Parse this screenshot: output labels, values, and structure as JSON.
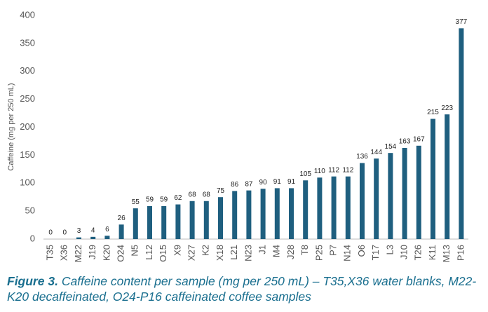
{
  "chart_data": {
    "type": "bar",
    "y_label": "Caffeine (mg per 250 mL)",
    "categories": [
      "T35",
      "X36",
      "M22",
      "J19",
      "K20",
      "O24",
      "N5",
      "L12",
      "O15",
      "X9",
      "X27",
      "K2",
      "X18",
      "L21",
      "N23",
      "J1",
      "M4",
      "J28",
      "T8",
      "P25",
      "P7",
      "N14",
      "O6",
      "T17",
      "L3",
      "J10",
      "T26",
      "K11",
      "M13",
      "P16"
    ],
    "values": [
      0,
      0,
      3,
      4,
      6,
      26,
      55,
      59,
      59,
      62,
      68,
      68,
      75,
      86,
      87,
      90,
      91,
      91,
      105,
      110,
      112,
      112,
      136,
      144,
      154,
      163,
      167,
      215,
      223,
      377
    ],
    "color": "#1f5f7f",
    "ylim": [
      0,
      400
    ],
    "yticks": [
      0,
      50,
      100,
      150,
      200,
      250,
      300,
      350,
      400
    ],
    "grid": false
  },
  "caption": {
    "label": "Figure 3.",
    "text": "Caffeine content per sample (mg per 250 mL) – T35,X36 water blanks, M22-K20 decaffeinated, O24-P16 caffeinated coffee samples"
  }
}
